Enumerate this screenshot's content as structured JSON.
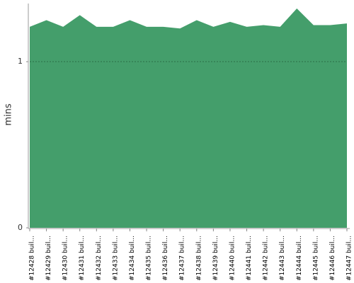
{
  "chart_data": {
    "type": "area",
    "y_label": "mins",
    "categories": [
      "#12428 buil...",
      "#12429 buil...",
      "#12430 buil...",
      "#12431 buil...",
      "#12432 buil...",
      "#12433 buil...",
      "#12434 buil...",
      "#12435 buil...",
      "#12436 buil...",
      "#12437 buil...",
      "#12438 buil...",
      "#12439 buil...",
      "#12440 buil...",
      "#12441 buil...",
      "#12442 buil...",
      "#12443 buil...",
      "#12444 buil...",
      "#12445 buil...",
      "#12446 buil...",
      "#12447 buil..."
    ],
    "values": [
      1.21,
      1.25,
      1.21,
      1.28,
      1.21,
      1.21,
      1.25,
      1.21,
      1.21,
      1.2,
      1.25,
      1.21,
      1.24,
      1.21,
      1.22,
      1.21,
      1.32,
      1.22,
      1.22,
      1.23
    ],
    "color": "#449e6b",
    "ylim": [
      0,
      1.35
    ],
    "yticks": [
      0,
      1
    ],
    "grid": true
  }
}
